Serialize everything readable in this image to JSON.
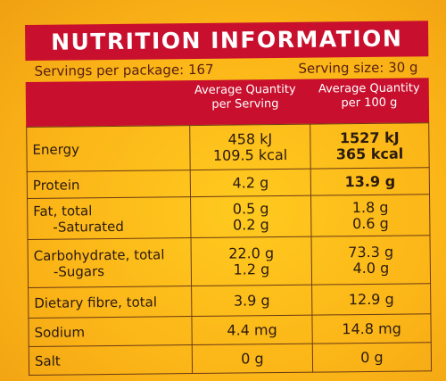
{
  "title": "NUTRITION INFORMATION",
  "servings_per_package": "Servings per package: 167",
  "serving_size": "Serving size: 30 g",
  "columns": {
    "per_serving": [
      "Average Quantity",
      "per Serving"
    ],
    "per_100g": [
      "Average Quantity",
      "per 100 g"
    ]
  },
  "rows": {
    "energy": {
      "label": "Energy",
      "serving": [
        "458 kJ",
        "109.5 kcal"
      ],
      "per100": [
        "1527 kJ",
        "365 kcal"
      ]
    },
    "protein": {
      "label": "Protein",
      "serving": "4.2 g",
      "per100": "13.9 g"
    },
    "fat": {
      "label": "Fat, total",
      "sub_label": "-Saturated",
      "serving": [
        "0.5 g",
        "0.2 g"
      ],
      "per100": [
        "1.8 g",
        "0.6 g"
      ]
    },
    "carbs": {
      "label": "Carbohydrate, total",
      "sub_label": "-Sugars",
      "serving": [
        "22.0 g",
        "1.2 g"
      ],
      "per100": [
        "73.3 g",
        "4.0 g"
      ]
    },
    "fibre": {
      "label": "Dietary fibre, total",
      "serving": "3.9 g",
      "per100": "12.9 g"
    },
    "sodium": {
      "label": "Sodium",
      "serving": "4.4 mg",
      "per100": "14.8 mg"
    },
    "salt": {
      "label": "Salt",
      "serving": "0 g",
      "per100": "0 g"
    }
  },
  "colors": {
    "banner": "#c8102e",
    "background": "#fbb417",
    "text": "#2a1a10"
  }
}
